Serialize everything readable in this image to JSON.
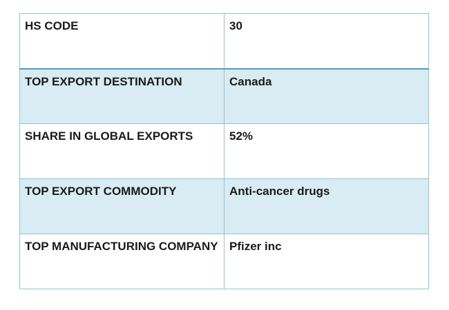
{
  "table": {
    "rows": [
      {
        "label": "HS CODE",
        "value": "30"
      },
      {
        "label": "TOP EXPORT DESTINATION",
        "value": "Canada"
      },
      {
        "label": "SHARE IN GLOBAL EXPORTS",
        "value": "52%"
      },
      {
        "label": "TOP EXPORT COMMODITY",
        "value": "Anti-cancer drugs"
      },
      {
        "label": "TOP MANUFACTURING COMPANY",
        "value": "Pfizer inc"
      }
    ]
  },
  "colors": {
    "border": "#8cc4d6",
    "header_rule": "#4e9fc0",
    "band_fill": "#d9ecf3"
  }
}
